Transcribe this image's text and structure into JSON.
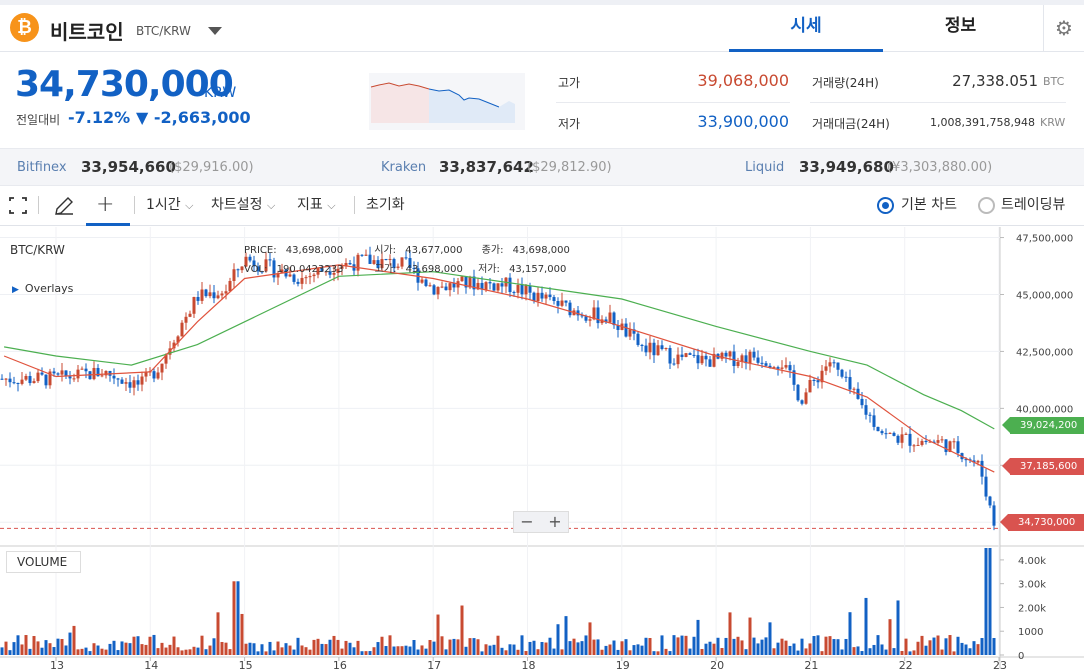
{
  "header": {
    "coin_logo": "₿",
    "coin_name": "비트코인",
    "pair": "BTC/KRW",
    "tabs": [
      "시세",
      "정보"
    ],
    "settings_icon": "gear-icon"
  },
  "price": {
    "current": "34,730,000",
    "unit": "KRW",
    "change_label": "전일대비",
    "change_rate": "-7.12%",
    "change_amount": "▼ -2,663,000"
  },
  "stats": {
    "high_label": "고가",
    "high_value": "39,068,000",
    "low_label": "저가",
    "low_value": "33,900,000",
    "volume_label": "거래량(24H)",
    "volume_value": "27,338.051",
    "volume_unit": "BTC",
    "amount_label": "거래대금(24H)",
    "amount_value": "1,008,391,758,948",
    "amount_unit": "KRW"
  },
  "exchanges": [
    {
      "name": "Bitfinex",
      "price": "33,954,660",
      "usd": "($29,916.00)"
    },
    {
      "name": "Kraken",
      "price": "33,837,642",
      "usd": "($29,812.90)"
    },
    {
      "name": "Liquid",
      "price": "33,949,680",
      "usd": "(¥3,303,880.00)"
    }
  ],
  "toolbar": {
    "fullscreen_icon": "expand-icon",
    "draw_icon": "pencil-icon",
    "crosshair": "+",
    "interval": "1시간",
    "chart_settings": "차트설정",
    "indicators": "지표",
    "reset": "초기화",
    "basic_chart": "기본 차트",
    "tradingview": "트레이딩뷰",
    "chevron": "⌵"
  },
  "chart": {
    "title": "BTC/KRW",
    "overlays": "Overlays",
    "legend": {
      "price_label": "PRICE:",
      "price_value": "43,698,000",
      "open_label": "시가:",
      "open_value": "43,677,000",
      "close_label": "종가:",
      "close_value": "43,698,000",
      "vol_label": "VOL:",
      "vol_value": "190.0423233",
      "high_label": "고가:",
      "high_value": "43,698,000",
      "low_label": "저가:",
      "low_value": "43,157,000"
    },
    "price_tags": {
      "ma_green": "39,024,200",
      "ma_red": "37,185,600",
      "last": "34,730,000"
    },
    "volume_label": "VOLUME",
    "zoom_out": "−",
    "zoom_in": "+",
    "colors": {
      "up": "#c84a31",
      "down": "#1261c4",
      "ma_long": "#4caf50",
      "ma_short": "#e0533d"
    }
  },
  "chart_data": {
    "type": "candlestick",
    "x_tick_labels": [
      "13",
      "14",
      "15",
      "16",
      "17",
      "18",
      "19",
      "20",
      "21",
      "22",
      "23"
    ],
    "y_tick_labels": [
      "47,500,000",
      "45,000,000",
      "42,500,000",
      "40,000,000",
      "37,500,000",
      "35,000,000"
    ],
    "ylim": [
      34000000,
      47700000
    ],
    "volume_tick_labels": [
      "4.00k",
      "3.00k",
      "2.00k",
      "1000",
      "0"
    ],
    "volume_ylim": [
      0,
      4500
    ],
    "close_path": [
      [
        13,
        41300000
      ],
      [
        13.5,
        41600000
      ],
      [
        13.9,
        41000000
      ],
      [
        14.1,
        41900000
      ],
      [
        14.3,
        43500000
      ],
      [
        14.5,
        44900000
      ],
      [
        14.8,
        45200000
      ],
      [
        15.0,
        46600000
      ],
      [
        15.3,
        46100000
      ],
      [
        15.6,
        45700000
      ],
      [
        15.9,
        46200000
      ],
      [
        16.3,
        46500000
      ],
      [
        16.7,
        46300000
      ],
      [
        17.0,
        45300000
      ],
      [
        17.4,
        45500000
      ],
      [
        17.8,
        45400000
      ],
      [
        18.1,
        44900000
      ],
      [
        18.5,
        44300000
      ],
      [
        18.9,
        43900000
      ],
      [
        19.2,
        42700000
      ],
      [
        19.6,
        42200000
      ],
      [
        20.0,
        42100000
      ],
      [
        20.4,
        42300000
      ],
      [
        20.7,
        42000000
      ],
      [
        20.9,
        40400000
      ],
      [
        21.2,
        42100000
      ],
      [
        21.5,
        40300000
      ],
      [
        21.8,
        38800000
      ],
      [
        22.1,
        38600000
      ],
      [
        22.4,
        38500000
      ],
      [
        22.6,
        38100000
      ],
      [
        22.8,
        37400000
      ],
      [
        22.95,
        34900000
      ]
    ],
    "ma_short": [
      [
        12.45,
        42300000
      ],
      [
        13.0,
        41400000
      ],
      [
        14.0,
        41600000
      ],
      [
        14.5,
        43800000
      ],
      [
        15.0,
        45700000
      ],
      [
        16.0,
        46300000
      ],
      [
        17.0,
        45700000
      ],
      [
        18.0,
        44800000
      ],
      [
        19.0,
        43600000
      ],
      [
        20.0,
        42300000
      ],
      [
        21.0,
        41400000
      ],
      [
        21.6,
        40500000
      ],
      [
        22.2,
        38700000
      ],
      [
        22.7,
        37700000
      ],
      [
        22.95,
        37200000
      ]
    ],
    "ma_long": [
      [
        12.45,
        42700000
      ],
      [
        13.0,
        42300000
      ],
      [
        13.8,
        41900000
      ],
      [
        14.5,
        42800000
      ],
      [
        15.0,
        43800000
      ],
      [
        16.0,
        45800000
      ],
      [
        17.0,
        46000000
      ],
      [
        18.0,
        45400000
      ],
      [
        19.0,
        44800000
      ],
      [
        20.0,
        43600000
      ],
      [
        21.0,
        42500000
      ],
      [
        21.6,
        41900000
      ],
      [
        22.2,
        40600000
      ],
      [
        22.6,
        39900000
      ],
      [
        22.95,
        39100000
      ]
    ]
  }
}
